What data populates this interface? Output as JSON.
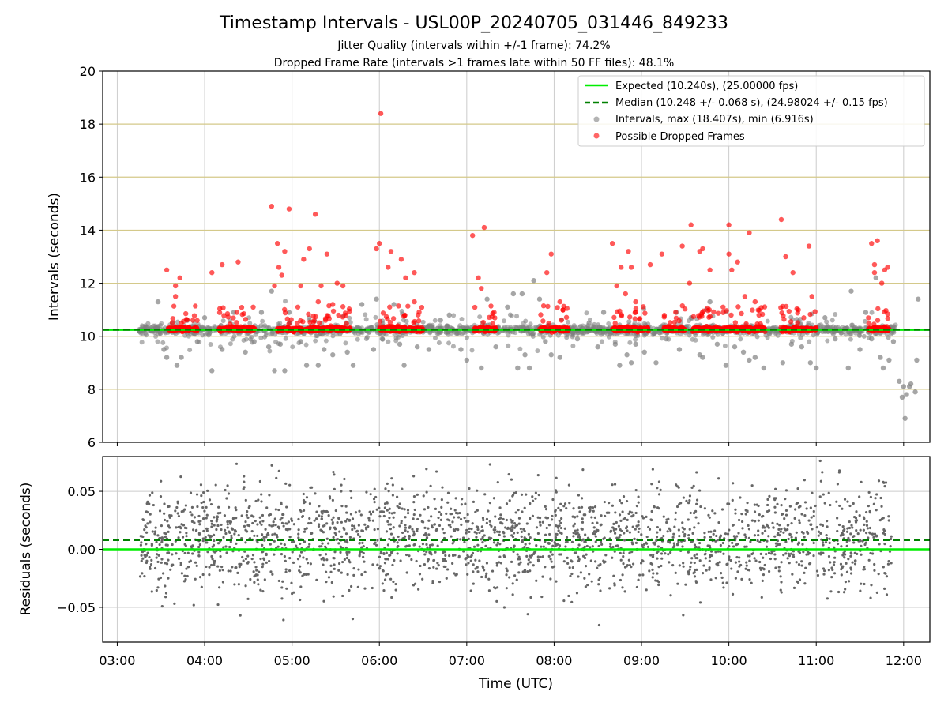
{
  "figure": {
    "title": "Timestamp Intervals - USL00P_20240705_031446_849233",
    "subtitle_1": "Jitter Quality (intervals within +/-1 frame): 74.2%",
    "subtitle_2": "Dropped Frame Rate (intervals >1 frames late within 50 FF files): 48.1%",
    "xlabel": "Time (UTC)"
  },
  "colors": {
    "expected": "#00ee00",
    "median": "#008000",
    "intervals": "#808080",
    "dropped": "#ff0000",
    "hgrid_top": "#d4c98a",
    "grid": "#cccccc"
  },
  "chart_data": [
    {
      "type": "scatter",
      "name": "intervals-panel",
      "ylabel": "Intervals (seconds)",
      "ylim": [
        6,
        20
      ],
      "yticks": [
        6,
        8,
        10,
        12,
        14,
        16,
        18,
        20
      ],
      "x_range": [
        "02:50",
        "12:18"
      ],
      "xticks": [
        "03:00",
        "04:00",
        "05:00",
        "06:00",
        "07:00",
        "08:00",
        "09:00",
        "10:00",
        "11:00",
        "12:00"
      ],
      "grid": true,
      "legend_position": "top-right",
      "legend": [
        {
          "label": "Expected (10.240s), (25.00000 fps)",
          "style": "solid-line",
          "color": "#00ee00"
        },
        {
          "label": "Median (10.248 +/- 0.068 s), (24.98024 +/- 0.15 fps)",
          "style": "dashed-line",
          "color": "#008000"
        },
        {
          "label": "Intervals, max (18.407s), min (6.916s)",
          "style": "marker",
          "color": "#808080"
        },
        {
          "label": "Possible Dropped Frames",
          "style": "marker",
          "color": "#ff0000"
        }
      ],
      "expected_line": 10.24,
      "median_line": 10.248,
      "time_span": [
        "03:15",
        "11:55"
      ],
      "baseline_interval": 10.24,
      "dropped_band_segments": [
        [
          "03:35",
          "03:55"
        ],
        [
          "04:10",
          "04:35"
        ],
        [
          "04:50",
          "05:40"
        ],
        [
          "06:00",
          "06:30"
        ],
        [
          "07:05",
          "07:20"
        ],
        [
          "07:50",
          "08:10"
        ],
        [
          "08:40",
          "09:05"
        ],
        [
          "09:15",
          "09:30"
        ],
        [
          "09:35",
          "10:25"
        ],
        [
          "10:35",
          "11:00"
        ],
        [
          "11:35",
          "11:50"
        ]
      ],
      "series": [
        {
          "name": "Intervals",
          "points": [
            [
              "03:28",
              11.3
            ],
            [
              "03:32",
              9.5
            ],
            [
              "03:34",
              9.2
            ],
            [
              "03:38",
              10.5
            ],
            [
              "03:41",
              8.9
            ],
            [
              "03:44",
              9.2
            ],
            [
              "03:48",
              10.6
            ],
            [
              "03:55",
              9.8
            ],
            [
              "04:00",
              10.7
            ],
            [
              "04:05",
              8.7
            ],
            [
              "04:12",
              9.5
            ],
            [
              "04:20",
              10.9
            ],
            [
              "04:28",
              9.4
            ],
            [
              "04:34",
              9.8
            ],
            [
              "04:39",
              10.9
            ],
            [
              "04:44",
              9.6
            ],
            [
              "04:46",
              11.7
            ],
            [
              "04:48",
              8.7
            ],
            [
              "04:52",
              9.7
            ],
            [
              "04:55",
              8.7
            ],
            [
              "04:58",
              10.9
            ],
            [
              "05:06",
              9.8
            ],
            [
              "05:10",
              8.9
            ],
            [
              "05:18",
              8.9
            ],
            [
              "05:22",
              9.5
            ],
            [
              "05:28",
              9.3
            ],
            [
              "05:33",
              10.1
            ],
            [
              "05:38",
              9.4
            ],
            [
              "05:42",
              8.9
            ],
            [
              "05:48",
              11.2
            ],
            [
              "05:56",
              9.5
            ],
            [
              "05:58",
              11.4
            ],
            [
              "06:02",
              9.9
            ],
            [
              "06:10",
              11.2
            ],
            [
              "06:14",
              9.7
            ],
            [
              "06:17",
              8.9
            ],
            [
              "06:26",
              9.6
            ],
            [
              "06:34",
              9.5
            ],
            [
              "06:42",
              10.6
            ],
            [
              "06:48",
              10.8
            ],
            [
              "06:56",
              9.5
            ],
            [
              "07:00",
              9.1
            ],
            [
              "07:10",
              8.8
            ],
            [
              "07:14",
              11.4
            ],
            [
              "07:20",
              9.6
            ],
            [
              "07:28",
              11.1
            ],
            [
              "07:32",
              11.6
            ],
            [
              "07:35",
              8.8
            ],
            [
              "07:38",
              11.6
            ],
            [
              "07:40",
              9.3
            ],
            [
              "07:43",
              8.8
            ],
            [
              "07:46",
              12.1
            ],
            [
              "07:50",
              11.4
            ],
            [
              "07:54",
              9.8
            ],
            [
              "07:58",
              9.3
            ],
            [
              "08:04",
              9.2
            ],
            [
              "08:16",
              9.9
            ],
            [
              "08:24",
              10.5
            ],
            [
              "08:30",
              9.6
            ],
            [
              "08:34",
              10.9
            ],
            [
              "08:42",
              9.7
            ],
            [
              "08:45",
              8.9
            ],
            [
              "08:50",
              9.3
            ],
            [
              "08:53",
              9.0
            ],
            [
              "08:56",
              9.7
            ],
            [
              "09:02",
              9.4
            ],
            [
              "09:10",
              9.0
            ],
            [
              "09:17",
              9.9
            ],
            [
              "09:24",
              10.9
            ],
            [
              "09:26",
              9.5
            ],
            [
              "09:34",
              10.7
            ],
            [
              "09:40",
              9.3
            ],
            [
              "09:42",
              9.2
            ],
            [
              "09:47",
              11.3
            ],
            [
              "09:52",
              9.7
            ],
            [
              "09:58",
              8.9
            ],
            [
              "10:04",
              9.6
            ],
            [
              "10:10",
              9.4
            ],
            [
              "10:14",
              9.1
            ],
            [
              "10:18",
              9.2
            ],
            [
              "10:24",
              8.8
            ],
            [
              "10:28",
              10.1
            ],
            [
              "10:37",
              9.0
            ],
            [
              "10:43",
              9.7
            ],
            [
              "10:50",
              9.6
            ],
            [
              "10:56",
              9.0
            ],
            [
              "11:00",
              8.8
            ],
            [
              "11:06",
              10.7
            ],
            [
              "11:13",
              9.9
            ],
            [
              "11:22",
              8.8
            ],
            [
              "11:24",
              11.7
            ],
            [
              "11:30",
              9.5
            ],
            [
              "11:34",
              10.9
            ],
            [
              "11:38",
              9.9
            ],
            [
              "11:41",
              12.2
            ],
            [
              "11:44",
              9.2
            ],
            [
              "11:46",
              8.8
            ],
            [
              "11:50",
              9.1
            ],
            [
              "11:53",
              9.8
            ],
            [
              "11:57",
              8.3
            ],
            [
              "11:59",
              7.7
            ],
            [
              "11:60",
              8.1
            ],
            [
              "11:61",
              6.9
            ],
            [
              "11:62",
              7.8
            ],
            [
              "11:64",
              8.1
            ],
            [
              "11:65",
              8.2
            ],
            [
              "11:68",
              7.9
            ],
            [
              "11:69",
              9.1
            ],
            [
              "11:70",
              11.4
            ]
          ]
        },
        {
          "name": "Possible Dropped Frames",
          "points": [
            [
              "03:34",
              12.5
            ],
            [
              "03:40",
              11.5
            ],
            [
              "03:40",
              11.9
            ],
            [
              "03:43",
              12.2
            ],
            [
              "04:05",
              12.4
            ],
            [
              "04:12",
              12.7
            ],
            [
              "04:23",
              12.8
            ],
            [
              "04:46",
              14.9
            ],
            [
              "04:48",
              11.9
            ],
            [
              "04:50",
              13.5
            ],
            [
              "04:51",
              12.6
            ],
            [
              "04:53",
              12.3
            ],
            [
              "04:55",
              13.2
            ],
            [
              "04:58",
              14.8
            ],
            [
              "05:04",
              11.1
            ],
            [
              "05:06",
              11.9
            ],
            [
              "05:08",
              12.9
            ],
            [
              "05:12",
              13.3
            ],
            [
              "05:16",
              14.6
            ],
            [
              "05:18",
              11.3
            ],
            [
              "05:20",
              11.9
            ],
            [
              "05:24",
              13.1
            ],
            [
              "05:28",
              11.2
            ],
            [
              "05:31",
              12.0
            ],
            [
              "05:35",
              11.9
            ],
            [
              "05:58",
              13.3
            ],
            [
              "06:00",
              13.5
            ],
            [
              "06:01",
              18.4
            ],
            [
              "06:06",
              12.6
            ],
            [
              "06:08",
              13.2
            ],
            [
              "06:15",
              12.9
            ],
            [
              "06:18",
              12.2
            ],
            [
              "06:24",
              12.4
            ],
            [
              "06:24",
              11.3
            ],
            [
              "07:04",
              13.8
            ],
            [
              "07:08",
              12.2
            ],
            [
              "07:10",
              11.8
            ],
            [
              "07:12",
              14.1
            ],
            [
              "07:55",
              12.4
            ],
            [
              "07:58",
              13.1
            ],
            [
              "08:04",
              11.3
            ],
            [
              "08:40",
              13.5
            ],
            [
              "08:43",
              11.9
            ],
            [
              "08:46",
              12.6
            ],
            [
              "08:49",
              11.6
            ],
            [
              "08:51",
              13.2
            ],
            [
              "08:53",
              12.6
            ],
            [
              "08:56",
              11.3
            ],
            [
              "09:06",
              12.7
            ],
            [
              "09:14",
              13.1
            ],
            [
              "09:28",
              13.4
            ],
            [
              "09:33",
              12.0
            ],
            [
              "09:34",
              14.2
            ],
            [
              "09:40",
              13.2
            ],
            [
              "09:42",
              13.3
            ],
            [
              "09:47",
              12.5
            ],
            [
              "09:56",
              11.1
            ],
            [
              "10:00",
              14.2
            ],
            [
              "10:00",
              13.1
            ],
            [
              "10:02",
              12.5
            ],
            [
              "10:06",
              12.8
            ],
            [
              "10:11",
              11.5
            ],
            [
              "10:14",
              13.9
            ],
            [
              "10:18",
              11.3
            ],
            [
              "10:36",
              14.4
            ],
            [
              "10:39",
              13.0
            ],
            [
              "10:44",
              12.4
            ],
            [
              "10:55",
              13.4
            ],
            [
              "10:57",
              11.5
            ],
            [
              "11:38",
              13.5
            ],
            [
              "11:40",
              12.7
            ],
            [
              "11:40",
              12.4
            ],
            [
              "11:42",
              13.6
            ],
            [
              "11:45",
              12.0
            ],
            [
              "11:47",
              12.5
            ],
            [
              "11:49",
              12.6
            ]
          ]
        }
      ]
    },
    {
      "type": "scatter",
      "name": "residuals-panel",
      "ylabel": "Residuals (seconds)",
      "ylim": [
        -0.08,
        0.08
      ],
      "yticks": [
        -0.05,
        0.0,
        0.05
      ],
      "ytick_labels": [
        "−0.05",
        "0.00",
        "0.05"
      ],
      "x_range": [
        "02:50",
        "12:18"
      ],
      "xticks": [
        "03:00",
        "04:00",
        "05:00",
        "06:00",
        "07:00",
        "08:00",
        "09:00",
        "10:00",
        "11:00",
        "12:00"
      ],
      "grid": true,
      "expected_line": 0.0,
      "median_line": 0.008,
      "residual_spread": 0.03,
      "series": [
        {
          "name": "Residuals",
          "time_span": [
            "03:15",
            "11:52"
          ]
        }
      ]
    }
  ]
}
